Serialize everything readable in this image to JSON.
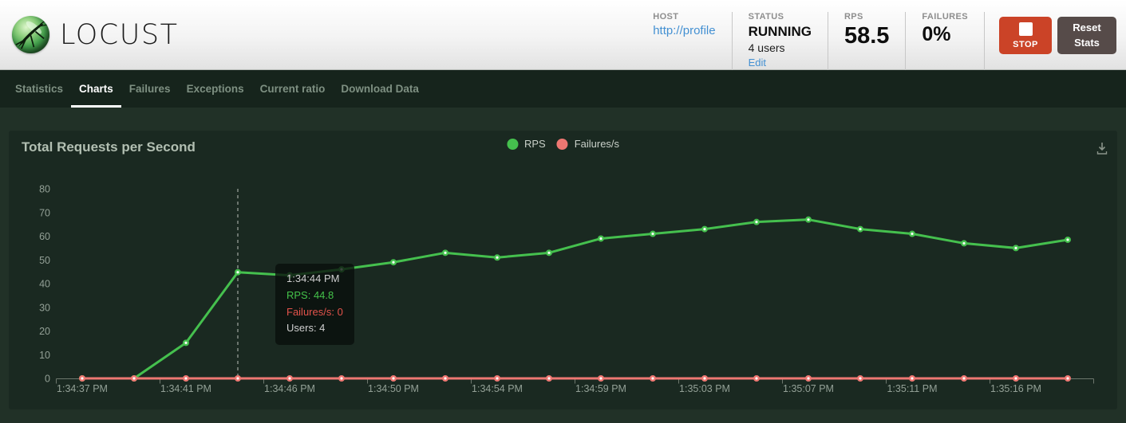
{
  "header": {
    "logo_text": "LOCUST",
    "host": {
      "label": "HOST",
      "value": "http://profile"
    },
    "status": {
      "label": "STATUS",
      "value": "RUNNING",
      "users": "4 users",
      "edit_label": "Edit"
    },
    "rps": {
      "label": "RPS",
      "value": "58.5"
    },
    "failures": {
      "label": "FAILURES",
      "value": "0%"
    },
    "stop_label": "STOP",
    "reset_label": "Reset Stats"
  },
  "nav": {
    "tabs": [
      {
        "label": "Statistics",
        "active": false
      },
      {
        "label": "Charts",
        "active": true
      },
      {
        "label": "Failures",
        "active": false
      },
      {
        "label": "Exceptions",
        "active": false
      },
      {
        "label": "Current ratio",
        "active": false
      },
      {
        "label": "Download Data",
        "active": false
      }
    ]
  },
  "icons": {
    "logo": "locust-insect",
    "stop": "white-square",
    "download": "download-arrow-tray"
  },
  "colors": {
    "rps_green": "#45c04e",
    "failures_red": "#ee7772",
    "stop_red": "#cb4327",
    "link_blue": "#4390d2"
  },
  "chart_data": {
    "type": "line",
    "title": "Total Requests per Second",
    "x_labels": [
      "1:34:37 PM",
      "1:34:41 PM",
      "1:34:46 PM",
      "1:34:50 PM",
      "1:34:54 PM",
      "1:34:59 PM",
      "1:35:03 PM",
      "1:35:07 PM",
      "1:35:11 PM",
      "1:35:16 PM"
    ],
    "label_every": 2,
    "y_ticks": [
      0,
      10,
      20,
      30,
      40,
      50,
      60,
      70,
      80
    ],
    "ylim": [
      0,
      80
    ],
    "grid": false,
    "legend_position": "top-center",
    "series": [
      {
        "name": "RPS",
        "color": "#45c04e",
        "values": [
          0,
          0,
          15,
          44.8,
          43.5,
          46,
          49,
          53,
          51,
          53,
          59,
          61,
          63,
          66,
          67,
          63,
          61,
          57,
          55,
          58.5
        ]
      },
      {
        "name": "Failures/s",
        "color": "#ee7772",
        "values": [
          0,
          0,
          0,
          0,
          0,
          0,
          0,
          0,
          0,
          0,
          0,
          0,
          0,
          0,
          0,
          0,
          0,
          0,
          0,
          0
        ]
      }
    ],
    "tooltip": {
      "time": "1:34:44 PM",
      "rps": "RPS: 44.8",
      "failures": "Failures/s: 0",
      "users": "Users: 4",
      "point_index": 3
    }
  }
}
